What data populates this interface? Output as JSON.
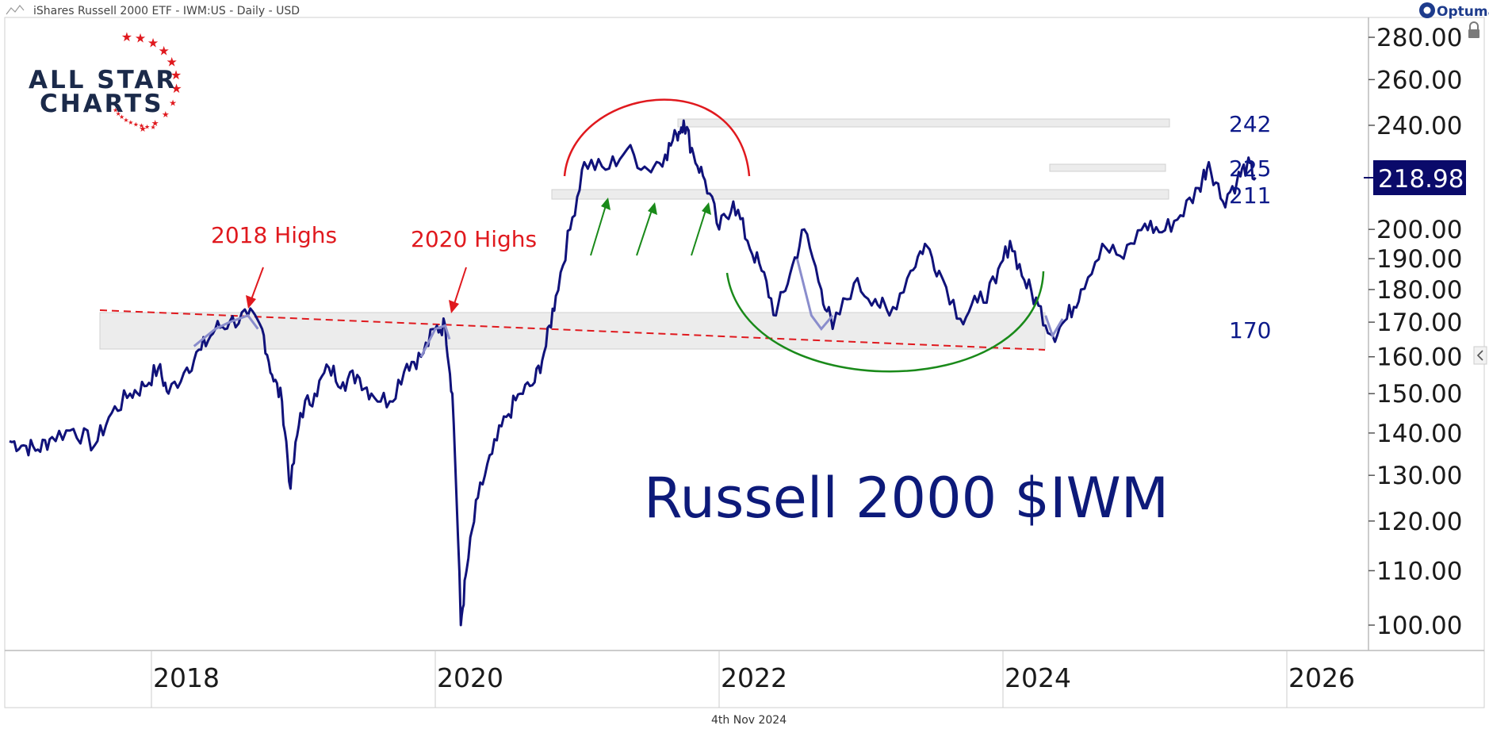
{
  "header": {
    "title": "iShares Russell 2000 ETF - IWM:US - Daily - USD",
    "brand": "Optuma"
  },
  "logo": {
    "line1": "ALL STAR",
    "line2": "CHARTS"
  },
  "footer": {
    "date": "4th Nov 2024"
  },
  "colors": {
    "price_line": "#10127a",
    "highlight": "#8a8dcc",
    "resistance": "#e0191e",
    "support_arc": "#1a8a1a",
    "zone_fill": "#ececec",
    "price_tag_bg": "#0a0a6a"
  },
  "chart_data": {
    "type": "line",
    "title": "Russell 2000 $IWM",
    "xlabel": "",
    "ylabel": "",
    "y_scale": "log",
    "ylim": [
      97,
      300
    ],
    "xlim": [
      2017.0,
      2027.0
    ],
    "grid": false,
    "last_price": "218.98",
    "y_ticks": [
      "100.00",
      "110.00",
      "120.00",
      "130.00",
      "140.00",
      "150.00",
      "160.00",
      "170.00",
      "180.00",
      "190.00",
      "200.00",
      "240.00",
      "260.00",
      "280.00"
    ],
    "x_ticks": [
      "2018",
      "2020",
      "2022",
      "2024",
      "2026"
    ],
    "series": [
      {
        "name": "IWM",
        "points": [
          [
            2017.0,
            138
          ],
          [
            2017.1,
            137
          ],
          [
            2017.2,
            136
          ],
          [
            2017.3,
            139
          ],
          [
            2017.45,
            141
          ],
          [
            2017.6,
            137
          ],
          [
            2017.72,
            145
          ],
          [
            2017.85,
            150
          ],
          [
            2017.95,
            152
          ],
          [
            2018.05,
            157
          ],
          [
            2018.12,
            150
          ],
          [
            2018.25,
            157
          ],
          [
            2018.35,
            162
          ],
          [
            2018.45,
            168
          ],
          [
            2018.55,
            170
          ],
          [
            2018.68,
            172
          ],
          [
            2018.78,
            168
          ],
          [
            2018.85,
            155
          ],
          [
            2018.92,
            148
          ],
          [
            2018.98,
            127
          ],
          [
            2019.05,
            145
          ],
          [
            2019.15,
            150
          ],
          [
            2019.25,
            157
          ],
          [
            2019.35,
            153
          ],
          [
            2019.45,
            155
          ],
          [
            2019.55,
            150
          ],
          [
            2019.68,
            148
          ],
          [
            2019.8,
            158
          ],
          [
            2019.9,
            160
          ],
          [
            2020.0,
            168
          ],
          [
            2020.07,
            169
          ],
          [
            2020.12,
            150
          ],
          [
            2020.18,
            100
          ],
          [
            2020.22,
            110
          ],
          [
            2020.3,
            125
          ],
          [
            2020.4,
            135
          ],
          [
            2020.5,
            144
          ],
          [
            2020.6,
            150
          ],
          [
            2020.7,
            153
          ],
          [
            2020.78,
            163
          ],
          [
            2020.85,
            178
          ],
          [
            2020.95,
            200
          ],
          [
            2021.05,
            225
          ],
          [
            2021.2,
            222
          ],
          [
            2021.35,
            230
          ],
          [
            2021.5,
            222
          ],
          [
            2021.62,
            228
          ],
          [
            2021.7,
            236
          ],
          [
            2021.75,
            242
          ],
          [
            2021.82,
            228
          ],
          [
            2021.9,
            218
          ],
          [
            2022.0,
            200
          ],
          [
            2022.1,
            210
          ],
          [
            2022.2,
            196
          ],
          [
            2022.3,
            186
          ],
          [
            2022.4,
            172
          ],
          [
            2022.5,
            185
          ],
          [
            2022.6,
            200
          ],
          [
            2022.72,
            180
          ],
          [
            2022.8,
            168
          ],
          [
            2022.95,
            182
          ],
          [
            2023.1,
            177
          ],
          [
            2023.2,
            172
          ],
          [
            2023.35,
            186
          ],
          [
            2023.45,
            195
          ],
          [
            2023.55,
            186
          ],
          [
            2023.7,
            171
          ],
          [
            2023.82,
            176
          ],
          [
            2023.95,
            182
          ],
          [
            2024.05,
            196
          ],
          [
            2024.15,
            183
          ],
          [
            2024.25,
            175
          ],
          [
            2024.35,
            166
          ],
          [
            2024.45,
            171
          ],
          [
            2024.55,
            180
          ],
          [
            2024.7,
            195
          ],
          [
            2024.85,
            190
          ],
          [
            2025.0,
            202
          ],
          [
            2025.12,
            199
          ],
          [
            2025.25,
            205
          ],
          [
            2025.38,
            215
          ],
          [
            2025.45,
            225
          ],
          [
            2025.55,
            210
          ],
          [
            2025.65,
            218
          ],
          [
            2025.72,
            224
          ],
          [
            2025.78,
            219
          ]
        ]
      }
    ],
    "levels": [
      {
        "label": "242",
        "value": 242
      },
      {
        "label": "225",
        "value": 225
      },
      {
        "label": "211",
        "value": 211
      },
      {
        "label": "170",
        "value": 170
      }
    ],
    "annotations": [
      {
        "text": "2018 Highs",
        "x": 2018.68,
        "y": 172
      },
      {
        "text": "2020 Highs",
        "x": 2020.07,
        "y": 169
      }
    ]
  }
}
